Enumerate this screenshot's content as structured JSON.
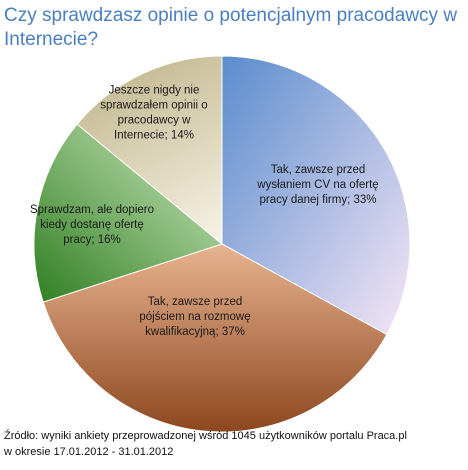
{
  "chart_data": {
    "type": "pie",
    "title": "Czy sprawdzasz opinie o potencjalnym pracodawcy w Internecie?",
    "slices": [
      {
        "label_lines": [
          "Tak, zawsze  przed",
          "wysłaniem CV na ofertę",
          "pracy danej firmy; 33%"
        ],
        "value": 33,
        "color_light": "#f6e6f6",
        "color_dark": "#5a8ccd"
      },
      {
        "label_lines": [
          "Tak, zawsze  przed",
          "pójściem na rozmowę",
          "kwalifikacyjną; 37%"
        ],
        "value": 37,
        "color_light": "#e7b48f",
        "color_dark": "#8d4720"
      },
      {
        "label_lines": [
          "Sprawdzam, ale dopiero",
          "kiedy dostanę ofertę",
          "pracy; 16%"
        ],
        "value": 16,
        "color_light": "#d2ebc2",
        "color_dark": "#2f7f22"
      },
      {
        "label_lines": [
          "Jeszcze nigdy nie",
          "sprawdzałem opinii o",
          "pracodawcy w",
          "Internecie; 14%"
        ],
        "value": 14,
        "color_light": "#f8f3e6",
        "color_dark": "#c6bc96"
      }
    ],
    "start_angle_deg": -90,
    "direction": "clockwise",
    "legend": "none"
  },
  "source": {
    "line1": "Źródło: wyniki ankiety przeprowadzonej wśród 1045 użytkowników portalu Praca.pl",
    "line2": "w okresie 17.01.2012 - 31.01.2012"
  }
}
